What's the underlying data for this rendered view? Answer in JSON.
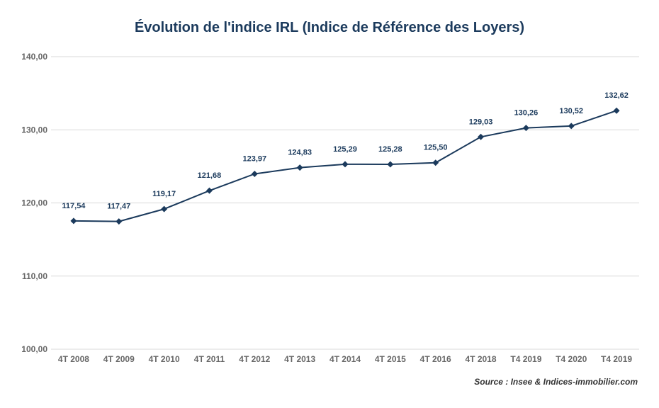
{
  "chart_data": {
    "type": "line",
    "title": "Évolution de l'indice IRL (Indice de Référence des Loyers)",
    "categories": [
      "4T 2008",
      "4T 2009",
      "4T 2010",
      "4T 2011",
      "4T 2012",
      "4T 2013",
      "4T 2014",
      "4T 2015",
      "4T 2016",
      "4T 2018",
      "T4 2019",
      "T4 2020",
      "T4 2019"
    ],
    "series": [
      {
        "values": [
          117.54,
          117.47,
          119.17,
          121.68,
          123.97,
          124.83,
          125.29,
          125.28,
          125.5,
          129.03,
          130.26,
          130.52,
          132.62
        ],
        "data_labels": [
          "117,54",
          "117,47",
          "119,17",
          "121,68",
          "123,97",
          "124,83",
          "125,29",
          "125,28",
          "125,50",
          "129,03",
          "130,26",
          "130,52",
          "132,62"
        ]
      }
    ],
    "ylim": [
      100,
      140
    ],
    "yticks": [
      {
        "value": 100,
        "label": "100,00"
      },
      {
        "value": 110,
        "label": "110,00"
      },
      {
        "value": 120,
        "label": "120,00"
      },
      {
        "value": 130,
        "label": "130,00"
      },
      {
        "value": 140,
        "label": "140,00"
      }
    ],
    "grid": true,
    "line_color": "#1b3a5c",
    "grid_color": "#d9d9d9",
    "source": "Source : Insee & Indices-immobilier.com"
  }
}
